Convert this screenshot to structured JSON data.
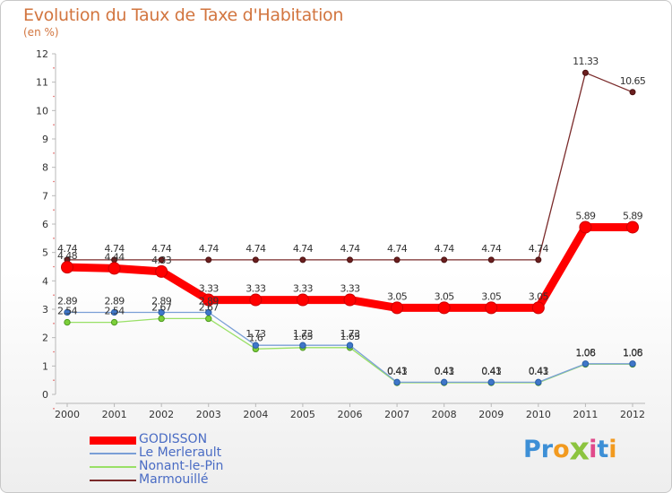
{
  "header": {
    "title": "Evolution du Taux de Taxe d'Habitation",
    "unit": "(en %)"
  },
  "brand": {
    "letters": [
      "P",
      "r",
      "o",
      "x",
      "i",
      "t",
      "i"
    ],
    "colors": [
      "#3d8fd6",
      "#3d8fd6",
      "#f29a1f",
      "#8cc43f",
      "#e04a8a",
      "#3d8fd6",
      "#f29a1f"
    ]
  },
  "chart_data": {
    "type": "line",
    "title": "Evolution du Taux de Taxe d'Habitation",
    "ylabel": "(en %)",
    "xlabel": "",
    "ylim": [
      0,
      12
    ],
    "yticks": [
      "0",
      "1",
      "2",
      "3",
      "4",
      "5",
      "6",
      "7",
      "8",
      "9",
      "10",
      "11",
      "12"
    ],
    "categories": [
      "2000",
      "2001",
      "2002",
      "2003",
      "2004",
      "2005",
      "2006",
      "2007",
      "2008",
      "2009",
      "2010",
      "2011",
      "2012"
    ],
    "grid": false,
    "series": [
      {
        "name": "GODISSON",
        "color": "#ff0000",
        "values": [
          4.48,
          4.44,
          4.33,
          3.33,
          3.33,
          3.33,
          3.33,
          3.05,
          3.05,
          3.05,
          3.05,
          5.89,
          5.89
        ],
        "labels": [
          "4.48",
          "4.44",
          "4.33",
          "3.33",
          "3.33",
          "3.33",
          "3.33",
          "3.05",
          "3.05",
          "3.05",
          "3.05",
          "5.89",
          "5.89"
        ]
      },
      {
        "name": "Le Merlerault",
        "color": "#7a9fd6",
        "values": [
          2.89,
          2.89,
          2.89,
          2.89,
          1.73,
          1.73,
          1.73,
          0.43,
          0.43,
          0.43,
          0.43,
          1.08,
          1.08
        ],
        "labels": [
          "2.89",
          "2.89",
          "2.89",
          "2.89",
          "1.73",
          "1.73",
          "1.73",
          "0.43",
          "0.43",
          "0.43",
          "0.43",
          "1.08",
          "1.08"
        ]
      },
      {
        "name": "Nonant-le-Pin",
        "color": "#99e066",
        "values": [
          2.54,
          2.54,
          2.67,
          2.67,
          1.6,
          1.65,
          1.65,
          0.41,
          0.41,
          0.41,
          0.41,
          1.06,
          1.06
        ],
        "labels": [
          "2.54",
          "2.54",
          "2.67",
          "2.67",
          "1.6",
          "1.65",
          "1.65",
          "0.41",
          "0.41",
          "0.41",
          "0.41",
          "1.06",
          "1.06"
        ]
      },
      {
        "name": "Marmouillé",
        "color": "#7a2a2a",
        "values": [
          4.74,
          4.74,
          4.74,
          4.74,
          4.74,
          4.74,
          4.74,
          4.74,
          4.74,
          4.74,
          4.74,
          11.33,
          10.65
        ],
        "labels": [
          "4.74",
          "4.74",
          "4.74",
          "4.74",
          "4.74",
          "4.74",
          "4.74",
          "4.74",
          "4.74",
          "4.74",
          "4.74",
          "11.33",
          "10.65"
        ]
      }
    ],
    "legend": [
      "GODISSON",
      "Le Merlerault",
      "Nonant-le-Pin",
      "Marmouillé"
    ],
    "legend_position": "bottom-left"
  }
}
